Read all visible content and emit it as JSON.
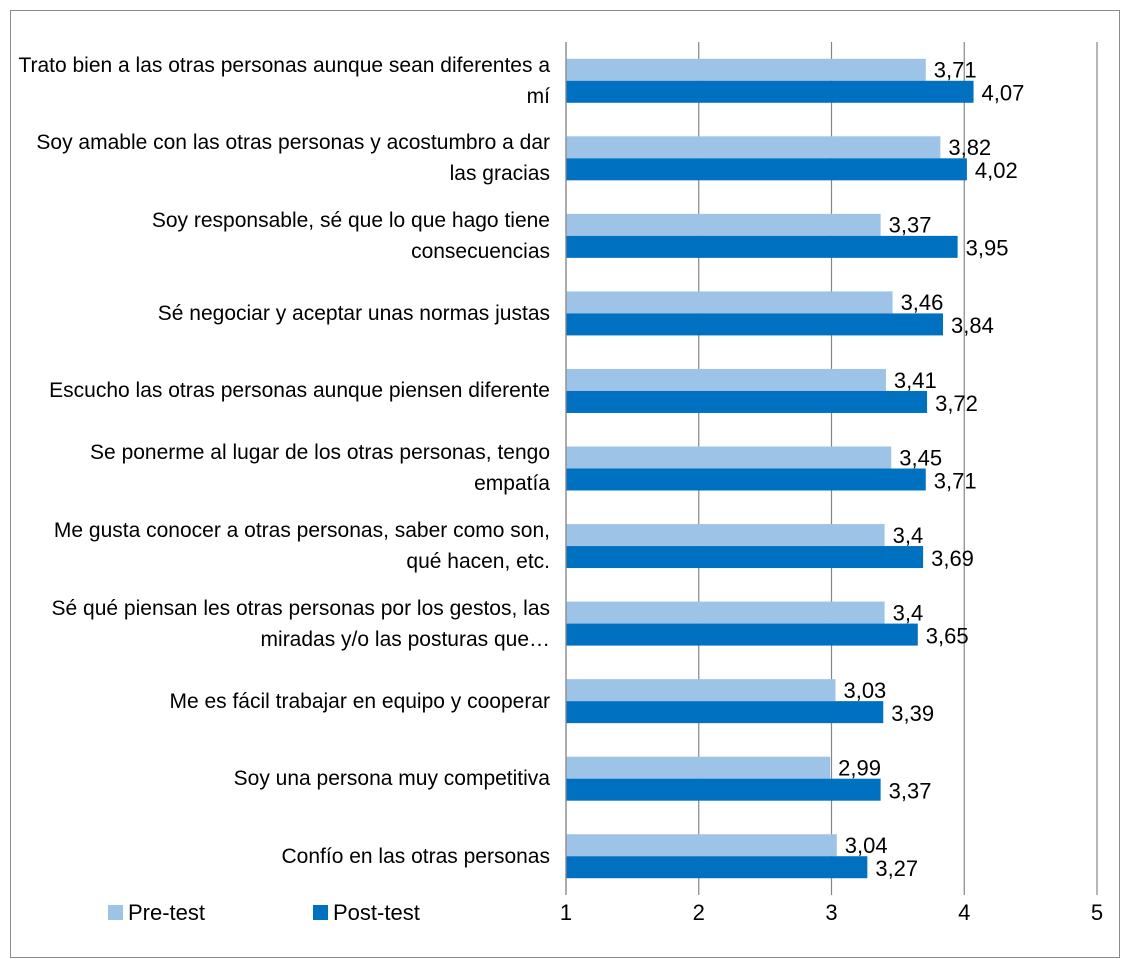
{
  "chart_data": {
    "type": "bar",
    "orientation": "horizontal",
    "categories": [
      "Trato bien a las otras personas aunque sean diferentes a mí",
      "Soy amable con las otras personas y acostumbro a dar las gracias",
      "Soy responsable, sé que lo que hago tiene consecuencias",
      "Sé negociar y aceptar unas normas justas",
      "Escucho las otras personas aunque piensen diferente",
      "Se ponerme al lugar de los otras personas, tengo empatía",
      "Me gusta conocer a otras personas, saber como son, qué hacen, etc.",
      "Sé qué piensan les otras personas por los gestos, las miradas y/o las posturas que…",
      "Me es fácil trabajar en equipo y cooperar",
      "Soy una persona muy competitiva",
      "Confío en las otras personas"
    ],
    "series": [
      {
        "name": "Pre-test",
        "color": "#9dc3e6",
        "values": [
          3.71,
          3.82,
          3.37,
          3.46,
          3.41,
          3.45,
          3.4,
          3.4,
          3.03,
          2.99,
          3.04
        ],
        "value_labels": [
          "3,71",
          "3,82",
          "3,37",
          "3,46",
          "3,41",
          "3,45",
          "3,4",
          "3,4",
          "3,03",
          "2,99",
          "3,04"
        ]
      },
      {
        "name": "Post-test",
        "color": "#0070c0",
        "values": [
          4.07,
          4.02,
          3.95,
          3.84,
          3.72,
          3.71,
          3.69,
          3.65,
          3.39,
          3.37,
          3.27
        ],
        "value_labels": [
          "4,07",
          "4,02",
          "3,95",
          "3,84",
          "3,72",
          "3,71",
          "3,69",
          "3,65",
          "3,39",
          "3,37",
          "3,27"
        ]
      }
    ],
    "xlim": [
      1,
      5
    ],
    "xticks": [
      1,
      2,
      3,
      4,
      5
    ],
    "grid": true,
    "legend": "bottom-left"
  }
}
